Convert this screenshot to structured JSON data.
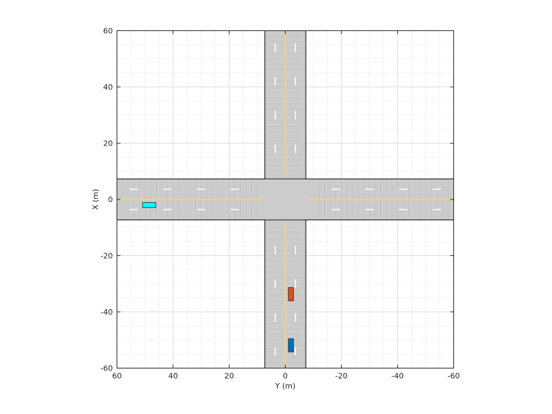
{
  "chart_data": {
    "type": "scatter",
    "title": "",
    "xlabel": "Y (m)",
    "ylabel": "X (m)",
    "xlim": [
      60,
      -60
    ],
    "ylim": [
      -60,
      60
    ],
    "x_direction": "reversed",
    "x_ticks": [
      60,
      40,
      20,
      0,
      -20,
      -40,
      -60
    ],
    "x_tick_labels": [
      "60",
      "40",
      "20",
      "0",
      "-20",
      "-40",
      "-60"
    ],
    "y_ticks": [
      60,
      40,
      20,
      0,
      -20,
      -40,
      -60
    ],
    "y_tick_labels": [
      "60",
      "40",
      "20",
      "0",
      "-20",
      "-40",
      "-60"
    ],
    "grid": true,
    "minor_grid": true,
    "legend": "none",
    "road": {
      "half_width": 7.3,
      "lane_width": 3.6,
      "color": "#cccccc",
      "center_line_color": "#f2d37a",
      "lane_marking_color": "#ffffff"
    },
    "vehicles": [
      {
        "name": "cyan",
        "color": "#00ffff",
        "x_center": -2,
        "y_center": 48.5,
        "length": 4.7,
        "width": 1.8
      },
      {
        "name": "orange",
        "color": "#d95319",
        "x_center": -33.7,
        "y_center": -2,
        "length": 4.7,
        "width": 1.8
      },
      {
        "name": "blue",
        "color": "#0072bd",
        "x_center": -51.9,
        "y_center": -2,
        "length": 4.7,
        "width": 1.8
      }
    ]
  }
}
